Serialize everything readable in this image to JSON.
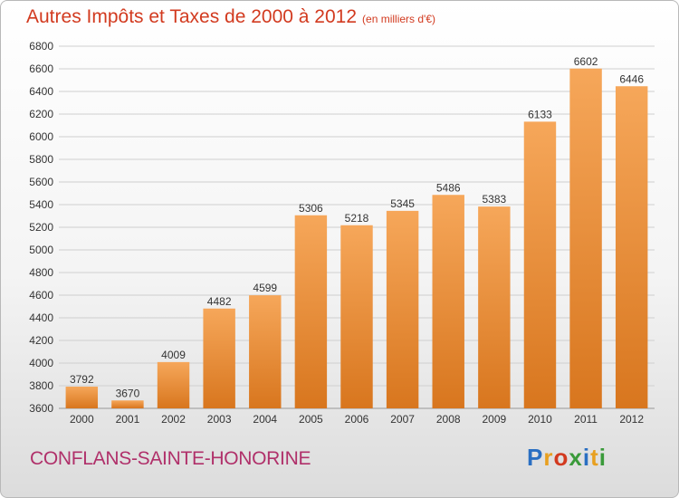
{
  "title": "Autres Impôts et Taxes de 2000 à 2012",
  "unit_note": "(en milliers d'€)",
  "commune": "CONFLANS-SAINTE-HONORINE",
  "logo": {
    "letters": [
      "P",
      "r",
      "o",
      "x",
      "i",
      "t",
      "i"
    ],
    "colors": [
      "#2a6fc2",
      "#e8a020",
      "#d23a1f",
      "#3a9a3a",
      "#2a6fc2",
      "#e8a020",
      "#3a9a3a"
    ]
  },
  "colors": {
    "bar_top": "#f6a75a",
    "bar_bottom": "#d8761e",
    "title": "#d23a1f",
    "commune": "#b0306a"
  },
  "chart_data": {
    "type": "bar",
    "categories": [
      "2000",
      "2001",
      "2002",
      "2003",
      "2004",
      "2005",
      "2006",
      "2007",
      "2008",
      "2009",
      "2010",
      "2011",
      "2012"
    ],
    "values": [
      3792,
      3670,
      4009,
      4482,
      4599,
      5306,
      5218,
      5345,
      5486,
      5383,
      6133,
      6602,
      6446
    ],
    "ylim": [
      3600,
      6800
    ],
    "yticks": [
      3600,
      3800,
      4000,
      4200,
      4400,
      4600,
      4800,
      5000,
      5200,
      5400,
      5600,
      5800,
      6000,
      6200,
      6400,
      6600,
      6800
    ],
    "grid": true
  }
}
